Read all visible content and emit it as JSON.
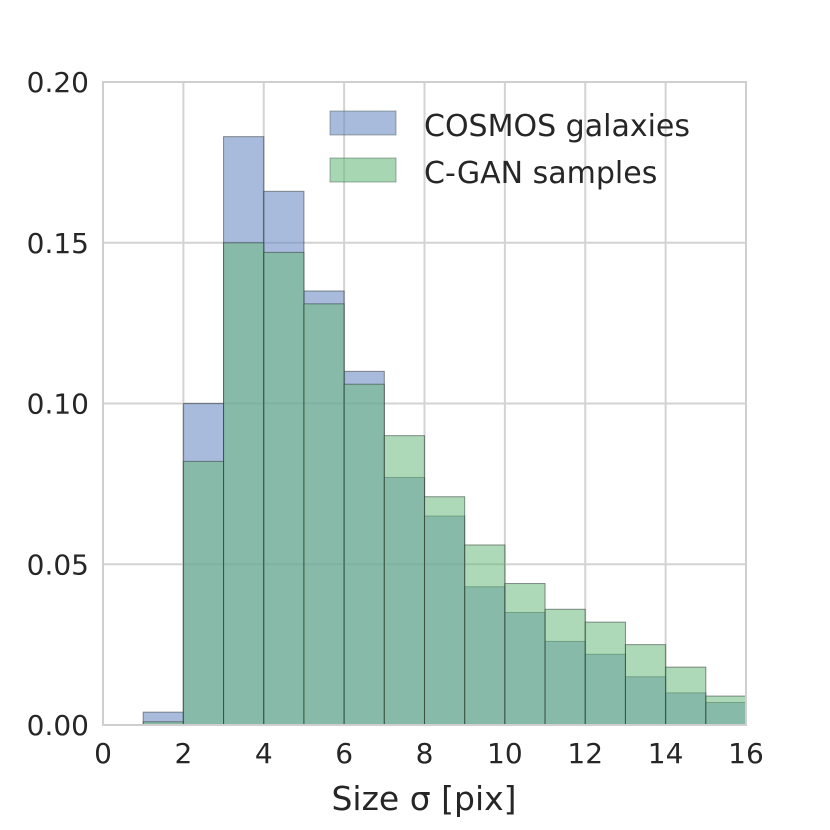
{
  "chart_data": {
    "type": "bar",
    "xlabel": "Size σ [pix]",
    "ylabel": "",
    "xlim": [
      0,
      16
    ],
    "ylim": [
      0,
      0.2
    ],
    "xticks": [
      "0",
      "2",
      "4",
      "6",
      "8",
      "10",
      "12",
      "14",
      "16"
    ],
    "yticks": [
      "0.00",
      "0.05",
      "0.10",
      "0.15",
      "0.20"
    ],
    "grid": true,
    "legend_position": "top-right",
    "bin_edges": [
      1,
      2,
      3,
      4,
      5,
      6,
      7,
      8,
      9,
      10,
      11,
      12,
      13,
      14,
      15,
      16
    ],
    "series": [
      {
        "name": "COSMOS galaxies",
        "color": "#6f8dc5",
        "values": [
          0.004,
          0.1,
          0.183,
          0.166,
          0.135,
          0.11,
          0.077,
          0.065,
          0.043,
          0.035,
          0.026,
          0.022,
          0.015,
          0.01,
          0.007
        ]
      },
      {
        "name": "C-GAN samples",
        "color": "#6cba7e",
        "values": [
          0.001,
          0.082,
          0.15,
          0.147,
          0.131,
          0.106,
          0.09,
          0.071,
          0.056,
          0.044,
          0.036,
          0.032,
          0.025,
          0.018,
          0.009
        ]
      }
    ]
  }
}
